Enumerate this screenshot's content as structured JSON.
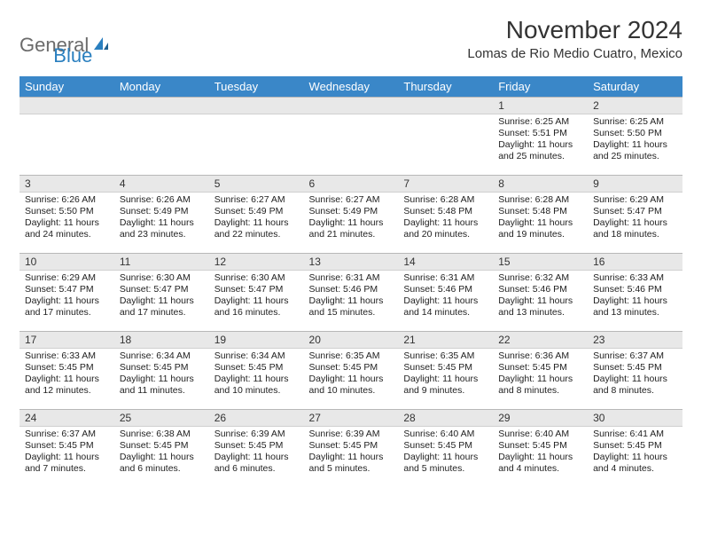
{
  "logo": {
    "word1": "General",
    "word2": "Blue"
  },
  "title": "November 2024",
  "location": "Lomas de Rio Medio Cuatro, Mexico",
  "colors": {
    "header_bg": "#3a87c8",
    "header_fg": "#ffffff",
    "daynum_bg": "#e8e8e8",
    "daynum_border": "#b8b8b8",
    "text": "#222222",
    "logo_gray": "#6b6b6b",
    "logo_blue": "#2a7fbf"
  },
  "weekdays": [
    "Sunday",
    "Monday",
    "Tuesday",
    "Wednesday",
    "Thursday",
    "Friday",
    "Saturday"
  ],
  "weeks": [
    [
      {
        "n": "",
        "sr": "",
        "ss": "",
        "dl": ""
      },
      {
        "n": "",
        "sr": "",
        "ss": "",
        "dl": ""
      },
      {
        "n": "",
        "sr": "",
        "ss": "",
        "dl": ""
      },
      {
        "n": "",
        "sr": "",
        "ss": "",
        "dl": ""
      },
      {
        "n": "",
        "sr": "",
        "ss": "",
        "dl": ""
      },
      {
        "n": "1",
        "sr": "Sunrise: 6:25 AM",
        "ss": "Sunset: 5:51 PM",
        "dl": "Daylight: 11 hours and 25 minutes."
      },
      {
        "n": "2",
        "sr": "Sunrise: 6:25 AM",
        "ss": "Sunset: 5:50 PM",
        "dl": "Daylight: 11 hours and 25 minutes."
      }
    ],
    [
      {
        "n": "3",
        "sr": "Sunrise: 6:26 AM",
        "ss": "Sunset: 5:50 PM",
        "dl": "Daylight: 11 hours and 24 minutes."
      },
      {
        "n": "4",
        "sr": "Sunrise: 6:26 AM",
        "ss": "Sunset: 5:49 PM",
        "dl": "Daylight: 11 hours and 23 minutes."
      },
      {
        "n": "5",
        "sr": "Sunrise: 6:27 AM",
        "ss": "Sunset: 5:49 PM",
        "dl": "Daylight: 11 hours and 22 minutes."
      },
      {
        "n": "6",
        "sr": "Sunrise: 6:27 AM",
        "ss": "Sunset: 5:49 PM",
        "dl": "Daylight: 11 hours and 21 minutes."
      },
      {
        "n": "7",
        "sr": "Sunrise: 6:28 AM",
        "ss": "Sunset: 5:48 PM",
        "dl": "Daylight: 11 hours and 20 minutes."
      },
      {
        "n": "8",
        "sr": "Sunrise: 6:28 AM",
        "ss": "Sunset: 5:48 PM",
        "dl": "Daylight: 11 hours and 19 minutes."
      },
      {
        "n": "9",
        "sr": "Sunrise: 6:29 AM",
        "ss": "Sunset: 5:47 PM",
        "dl": "Daylight: 11 hours and 18 minutes."
      }
    ],
    [
      {
        "n": "10",
        "sr": "Sunrise: 6:29 AM",
        "ss": "Sunset: 5:47 PM",
        "dl": "Daylight: 11 hours and 17 minutes."
      },
      {
        "n": "11",
        "sr": "Sunrise: 6:30 AM",
        "ss": "Sunset: 5:47 PM",
        "dl": "Daylight: 11 hours and 17 minutes."
      },
      {
        "n": "12",
        "sr": "Sunrise: 6:30 AM",
        "ss": "Sunset: 5:47 PM",
        "dl": "Daylight: 11 hours and 16 minutes."
      },
      {
        "n": "13",
        "sr": "Sunrise: 6:31 AM",
        "ss": "Sunset: 5:46 PM",
        "dl": "Daylight: 11 hours and 15 minutes."
      },
      {
        "n": "14",
        "sr": "Sunrise: 6:31 AM",
        "ss": "Sunset: 5:46 PM",
        "dl": "Daylight: 11 hours and 14 minutes."
      },
      {
        "n": "15",
        "sr": "Sunrise: 6:32 AM",
        "ss": "Sunset: 5:46 PM",
        "dl": "Daylight: 11 hours and 13 minutes."
      },
      {
        "n": "16",
        "sr": "Sunrise: 6:33 AM",
        "ss": "Sunset: 5:46 PM",
        "dl": "Daylight: 11 hours and 13 minutes."
      }
    ],
    [
      {
        "n": "17",
        "sr": "Sunrise: 6:33 AM",
        "ss": "Sunset: 5:45 PM",
        "dl": "Daylight: 11 hours and 12 minutes."
      },
      {
        "n": "18",
        "sr": "Sunrise: 6:34 AM",
        "ss": "Sunset: 5:45 PM",
        "dl": "Daylight: 11 hours and 11 minutes."
      },
      {
        "n": "19",
        "sr": "Sunrise: 6:34 AM",
        "ss": "Sunset: 5:45 PM",
        "dl": "Daylight: 11 hours and 10 minutes."
      },
      {
        "n": "20",
        "sr": "Sunrise: 6:35 AM",
        "ss": "Sunset: 5:45 PM",
        "dl": "Daylight: 11 hours and 10 minutes."
      },
      {
        "n": "21",
        "sr": "Sunrise: 6:35 AM",
        "ss": "Sunset: 5:45 PM",
        "dl": "Daylight: 11 hours and 9 minutes."
      },
      {
        "n": "22",
        "sr": "Sunrise: 6:36 AM",
        "ss": "Sunset: 5:45 PM",
        "dl": "Daylight: 11 hours and 8 minutes."
      },
      {
        "n": "23",
        "sr": "Sunrise: 6:37 AM",
        "ss": "Sunset: 5:45 PM",
        "dl": "Daylight: 11 hours and 8 minutes."
      }
    ],
    [
      {
        "n": "24",
        "sr": "Sunrise: 6:37 AM",
        "ss": "Sunset: 5:45 PM",
        "dl": "Daylight: 11 hours and 7 minutes."
      },
      {
        "n": "25",
        "sr": "Sunrise: 6:38 AM",
        "ss": "Sunset: 5:45 PM",
        "dl": "Daylight: 11 hours and 6 minutes."
      },
      {
        "n": "26",
        "sr": "Sunrise: 6:39 AM",
        "ss": "Sunset: 5:45 PM",
        "dl": "Daylight: 11 hours and 6 minutes."
      },
      {
        "n": "27",
        "sr": "Sunrise: 6:39 AM",
        "ss": "Sunset: 5:45 PM",
        "dl": "Daylight: 11 hours and 5 minutes."
      },
      {
        "n": "28",
        "sr": "Sunrise: 6:40 AM",
        "ss": "Sunset: 5:45 PM",
        "dl": "Daylight: 11 hours and 5 minutes."
      },
      {
        "n": "29",
        "sr": "Sunrise: 6:40 AM",
        "ss": "Sunset: 5:45 PM",
        "dl": "Daylight: 11 hours and 4 minutes."
      },
      {
        "n": "30",
        "sr": "Sunrise: 6:41 AM",
        "ss": "Sunset: 5:45 PM",
        "dl": "Daylight: 11 hours and 4 minutes."
      }
    ]
  ]
}
